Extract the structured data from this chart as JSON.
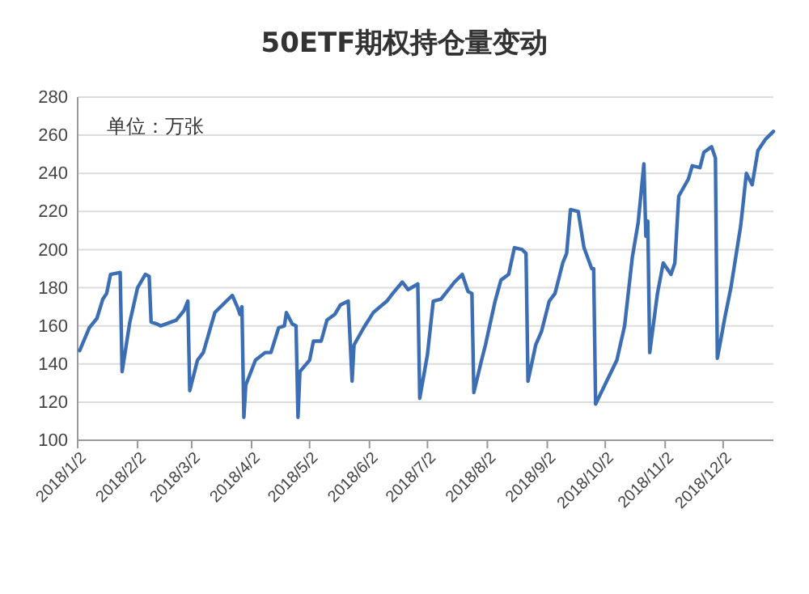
{
  "chart_data": {
    "type": "line",
    "title": "50ETF期权持仓量变动",
    "annotations": [
      "单位：万张"
    ],
    "x": [
      "2018-01-03",
      "2018-01-08",
      "2018-01-12",
      "2018-01-15",
      "2018-01-17",
      "2018-01-19",
      "2018-01-24",
      "2018-01-25",
      "2018-01-29",
      "2018-02-02",
      "2018-02-06",
      "2018-02-08",
      "2018-02-09",
      "2018-02-12",
      "2018-02-14",
      "2018-02-22",
      "2018-02-26",
      "2018-02-28",
      "2018-03-01",
      "2018-03-05",
      "2018-03-08",
      "2018-03-14",
      "2018-03-20",
      "2018-03-23",
      "2018-03-26",
      "2018-03-27",
      "2018-03-28",
      "2018-03-29",
      "2018-03-30",
      "2018-04-04",
      "2018-04-09",
      "2018-04-12",
      "2018-04-16",
      "2018-04-19",
      "2018-04-20",
      "2018-04-23",
      "2018-04-25",
      "2018-04-26",
      "2018-04-27",
      "2018-05-02",
      "2018-05-04",
      "2018-05-08",
      "2018-05-11",
      "2018-05-15",
      "2018-05-18",
      "2018-05-22",
      "2018-05-24",
      "2018-05-25",
      "2018-05-30",
      "2018-06-04",
      "2018-06-11",
      "2018-06-14",
      "2018-06-19",
      "2018-06-22",
      "2018-06-27",
      "2018-06-28",
      "2018-07-02",
      "2018-07-05",
      "2018-07-09",
      "2018-07-16",
      "2018-07-20",
      "2018-07-23",
      "2018-07-25",
      "2018-07-26",
      "2018-07-30",
      "2018-08-01",
      "2018-08-06",
      "2018-08-09",
      "2018-08-13",
      "2018-08-16",
      "2018-08-20",
      "2018-08-22",
      "2018-08-23",
      "2018-08-27",
      "2018-08-30",
      "2018-09-03",
      "2018-09-06",
      "2018-09-10",
      "2018-09-12",
      "2018-09-14",
      "2018-09-18",
      "2018-09-21",
      "2018-09-25",
      "2018-09-26",
      "2018-09-27",
      "2018-10-08",
      "2018-10-12",
      "2018-10-16",
      "2018-10-19",
      "2018-10-22",
      "2018-10-23",
      "2018-10-24",
      "2018-10-25",
      "2018-10-29",
      "2018-11-01",
      "2018-11-05",
      "2018-11-07",
      "2018-11-09",
      "2018-11-14",
      "2018-11-16",
      "2018-11-20",
      "2018-11-22",
      "2018-11-26",
      "2018-11-28",
      "2018-11-29",
      "2018-12-03",
      "2018-12-06",
      "2018-12-11",
      "2018-12-12",
      "2018-12-14",
      "2018-12-17",
      "2018-12-20",
      "2018-12-24",
      "2018-12-28"
    ],
    "series": [
      {
        "color": "#3c6eb4",
        "values": [
          147,
          159,
          164,
          174,
          177,
          187,
          188,
          136,
          162,
          180,
          187,
          186,
          162,
          161,
          160,
          163,
          168,
          173,
          126,
          142,
          146,
          167,
          173,
          176,
          169,
          166,
          170,
          112,
          129,
          142,
          146,
          146,
          159,
          160,
          167,
          161,
          160,
          112,
          136,
          142,
          152,
          152,
          163,
          166,
          171,
          173,
          131,
          150,
          159,
          167,
          173,
          177,
          183,
          179,
          182,
          122,
          145,
          173,
          174,
          183,
          187,
          178,
          177,
          125,
          142,
          150,
          173,
          184,
          187,
          201,
          200,
          198,
          131,
          150,
          157,
          173,
          177,
          193,
          198,
          221,
          220,
          201,
          190,
          190,
          119,
          142,
          160,
          196,
          214,
          245,
          207,
          215,
          146,
          177,
          193,
          187,
          193,
          228,
          237,
          244,
          243,
          251,
          254,
          248,
          143,
          165,
          180,
          212,
          221,
          240,
          234,
          252,
          258,
          262
        ]
      }
    ],
    "xlim": [
      "2018-01-02",
      "2018-12-28"
    ],
    "xticks": [
      {
        "value": "2018-01-02",
        "label": "2018/1/2"
      },
      {
        "value": "2018-02-02",
        "label": "2018/2/2"
      },
      {
        "value": "2018-03-02",
        "label": "2018/3/2"
      },
      {
        "value": "2018-04-02",
        "label": "2018/4/2"
      },
      {
        "value": "2018-05-02",
        "label": "2018/5/2"
      },
      {
        "value": "2018-06-02",
        "label": "2018/6/2"
      },
      {
        "value": "2018-07-02",
        "label": "2018/7/2"
      },
      {
        "value": "2018-08-02",
        "label": "2018/8/2"
      },
      {
        "value": "2018-09-02",
        "label": "2018/9/2"
      },
      {
        "value": "2018-10-02",
        "label": "2018/10/2"
      },
      {
        "value": "2018-11-02",
        "label": "2018/11/2"
      },
      {
        "value": "2018-12-02",
        "label": "2018/12/2"
      }
    ],
    "ylim": [
      100,
      280
    ],
    "yticks": [
      100,
      120,
      140,
      160,
      180,
      200,
      220,
      240,
      260,
      280
    ],
    "grid": "y",
    "marker": "none",
    "line_style": "solid"
  }
}
